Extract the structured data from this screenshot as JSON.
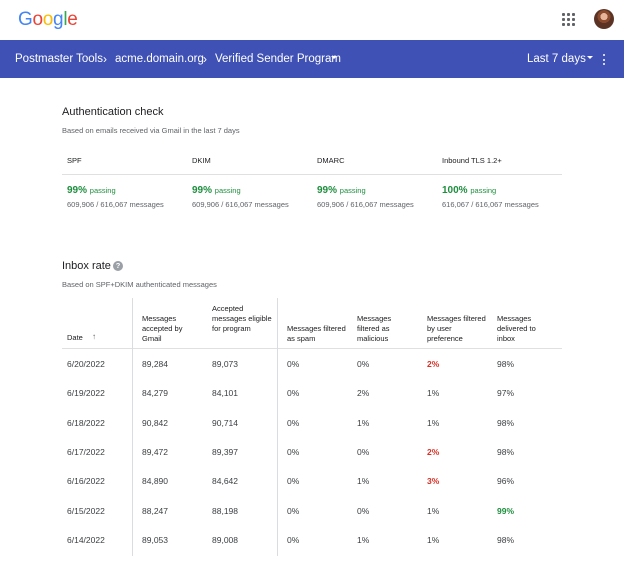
{
  "brand": {
    "letters": [
      "G",
      "o",
      "o",
      "g",
      "l",
      "e"
    ],
    "colors": [
      "#4285f4",
      "#ea4335",
      "#fbbc05",
      "#4285f4",
      "#34a853",
      "#ea4335"
    ]
  },
  "nav": {
    "app": "Postmaster Tools",
    "domain": "acme.domain.org",
    "program": "Verified Sender Program",
    "range": "Last 7 days",
    "accent": "#3f51b5"
  },
  "auth": {
    "title": "Authentication check",
    "subtitle": "Based on emails received via Gmail in the last 7 days",
    "items": [
      {
        "label": "SPF",
        "pct": "99%",
        "status": "passing",
        "count": "609,906 / 616,067 messages"
      },
      {
        "label": "DKIM",
        "pct": "99%",
        "status": "passing",
        "count": "609,906 / 616,067 messages"
      },
      {
        "label": "DMARC",
        "pct": "99%",
        "status": "passing",
        "count": "609,906 / 616,067 messages"
      },
      {
        "label": "Inbound TLS 1.2+",
        "pct": "100%",
        "status": "passing",
        "count": "616,067 / 616,067 messages"
      }
    ]
  },
  "inbox": {
    "title": "Inbox rate",
    "help_icon": "help-icon",
    "subtitle": "Based on SPF+DKIM authenticated messages",
    "columns": [
      "Date",
      "Messages accepted by Gmail",
      "Accepted messages eligible for program",
      "Messages filtered as spam",
      "Messages filtered as malicious",
      "Messages filtered by user preference",
      "Messages delivered to inbox"
    ],
    "rows": [
      [
        "6/20/2022",
        "89,284",
        "89,073",
        "0%",
        "0%",
        "2%",
        "98%"
      ],
      [
        "6/19/2022",
        "84,279",
        "84,101",
        "0%",
        "2%",
        "1%",
        "97%"
      ],
      [
        "6/18/2022",
        "90,842",
        "90,714",
        "0%",
        "1%",
        "1%",
        "98%"
      ],
      [
        "6/17/2022",
        "89,472",
        "89,397",
        "0%",
        "0%",
        "2%",
        "98%"
      ],
      [
        "6/16/2022",
        "84,890",
        "84,642",
        "0%",
        "1%",
        "3%",
        "96%"
      ],
      [
        "6/15/2022",
        "88,247",
        "88,198",
        "0%",
        "0%",
        "1%",
        "99%"
      ],
      [
        "6/14/2022",
        "89,053",
        "89,008",
        "0%",
        "1%",
        "1%",
        "98%"
      ]
    ],
    "highlights": {
      "red": "#d93025",
      "green": "#1e8e3e"
    }
  }
}
